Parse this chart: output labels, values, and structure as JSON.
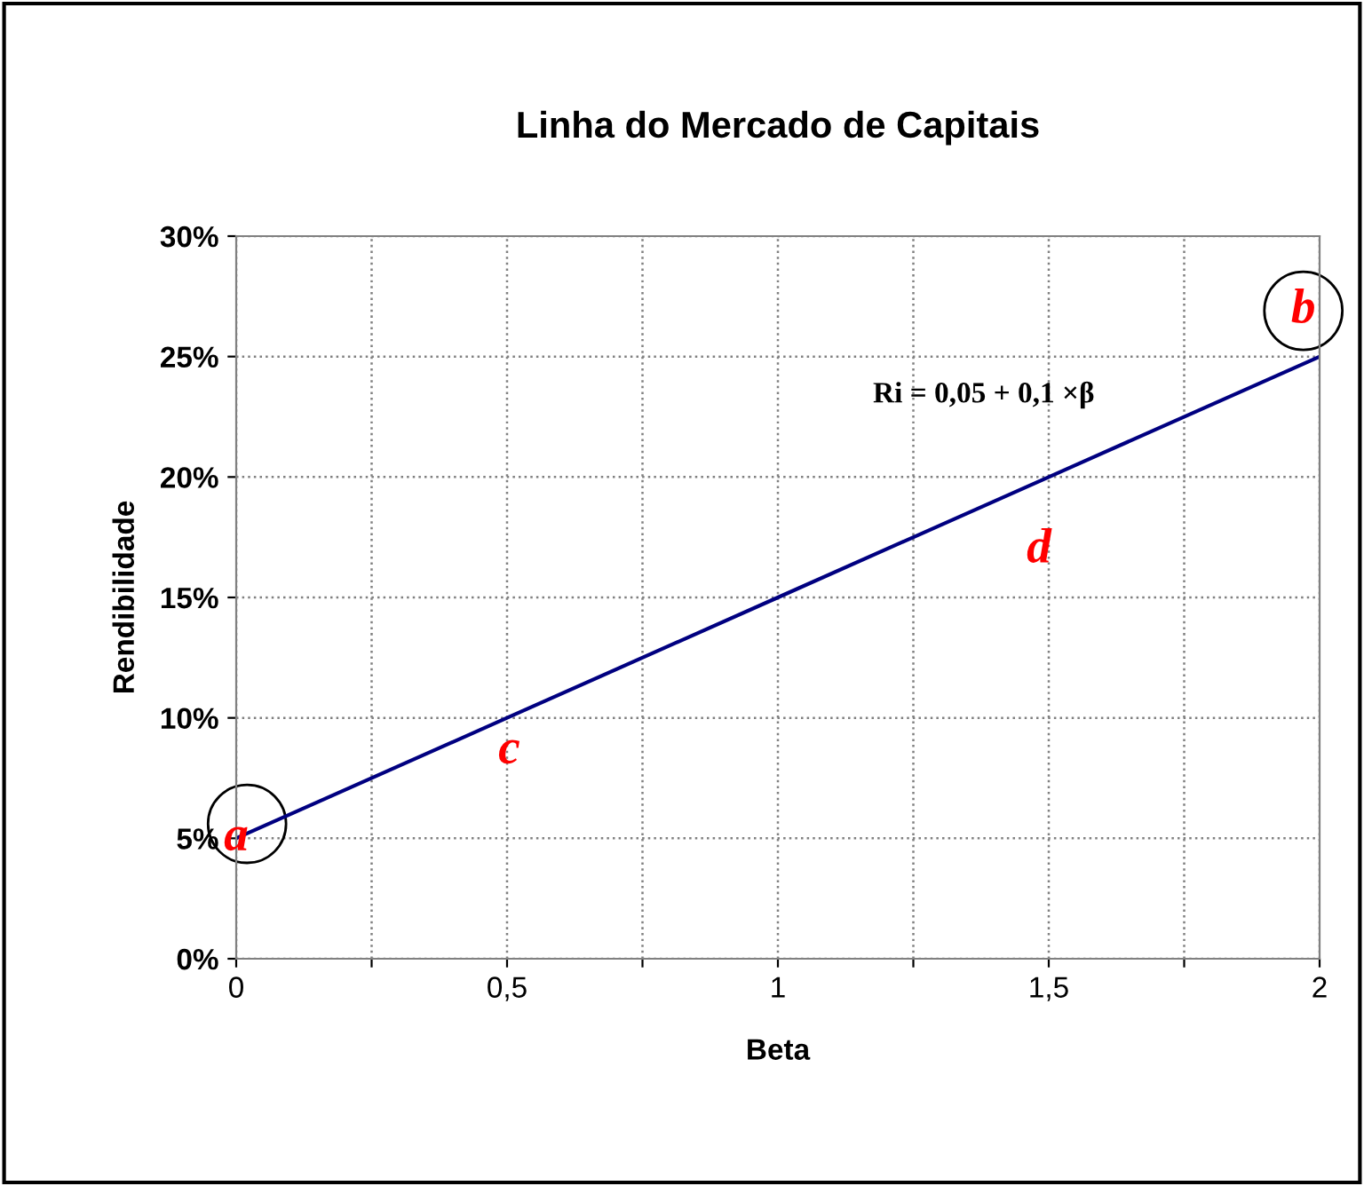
{
  "chart_data": {
    "type": "line",
    "title": "Linha do Mercado de Capitais",
    "xlabel": "Beta",
    "ylabel": "Rendibilidade",
    "x": [
      0,
      0.5,
      1,
      1.5,
      2
    ],
    "series": [
      {
        "color": "#000080",
        "values": [
          5,
          10,
          15,
          20,
          25
        ]
      }
    ],
    "xlim": [
      0,
      2
    ],
    "ylim": [
      0,
      30
    ],
    "xticks": [
      0,
      {
        "value": 0.25,
        "label": null
      },
      {
        "value": 0.5,
        "label": "0,5"
      },
      {
        "value": 0.75,
        "label": null
      },
      1,
      {
        "value": 1.25,
        "label": null
      },
      {
        "value": 1.5,
        "label": "1,5"
      },
      {
        "value": 1.75,
        "label": null
      },
      2
    ],
    "yticks": [
      {
        "value": 0,
        "label": "0%"
      },
      {
        "value": 5,
        "label": "5%"
      },
      {
        "value": 10,
        "label": "10%"
      },
      {
        "value": 15,
        "label": "15%"
      },
      {
        "value": 20,
        "label": "20%"
      },
      {
        "value": 25,
        "label": "25%"
      },
      {
        "value": 30,
        "label": "30%"
      }
    ],
    "annotations": [
      {
        "text": "a",
        "x": 0,
        "y": 5
      },
      {
        "text": "b",
        "x": 1.97,
        "y": 26.9
      },
      "c",
      "d",
      "Ri = 0,05 + 0,1 ×β"
    ],
    "grid": true,
    "legend": false,
    "marker": "none",
    "line_style": "solid"
  }
}
